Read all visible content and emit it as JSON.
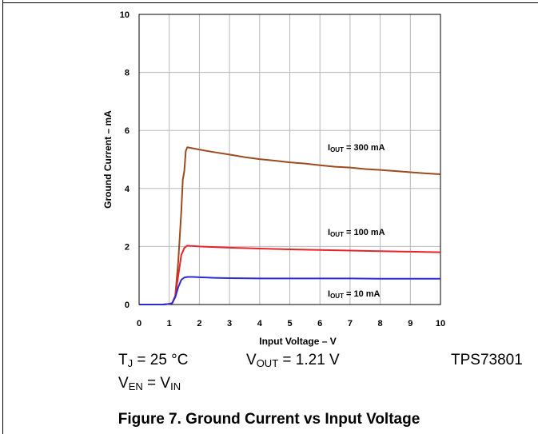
{
  "chart_data": {
    "type": "line",
    "xlabel": "Input Voltage – V",
    "ylabel": "Ground Current – mA",
    "xlim": [
      0,
      10
    ],
    "ylim": [
      0,
      10
    ],
    "xticks": [
      "0",
      "1",
      "2",
      "3",
      "4",
      "5",
      "6",
      "7",
      "8",
      "9",
      "10"
    ],
    "yticks": [
      "0",
      "2",
      "4",
      "6",
      "8",
      "10"
    ],
    "grid": true,
    "series": [
      {
        "name": "IOUT = 300 mA",
        "label_main": "I",
        "label_sub": "OUT",
        "label_rest": " = 300 mA",
        "color": "#9c4a1e",
        "x": [
          0,
          0.8,
          1.0,
          1.1,
          1.2,
          1.3,
          1.4,
          1.45,
          1.5,
          1.55,
          1.6,
          1.7,
          2,
          2.5,
          3,
          3.5,
          4,
          4.5,
          5,
          5.5,
          6,
          6.5,
          7,
          7.5,
          8,
          8.5,
          9,
          9.5,
          10
        ],
        "y": [
          0,
          0,
          0.02,
          0.05,
          0.3,
          1.5,
          3.2,
          4.3,
          4.6,
          5.3,
          5.42,
          5.4,
          5.34,
          5.25,
          5.17,
          5.08,
          5.01,
          4.96,
          4.9,
          4.86,
          4.8,
          4.75,
          4.72,
          4.67,
          4.64,
          4.6,
          4.56,
          4.52,
          4.49
        ]
      },
      {
        "name": "IOUT = 100 mA",
        "label_main": "I",
        "label_sub": "OUT",
        "label_rest": " = 100 mA",
        "color": "#e8242a",
        "x": [
          0,
          0.8,
          1.0,
          1.1,
          1.2,
          1.3,
          1.4,
          1.5,
          1.6,
          1.7,
          2,
          2.5,
          3,
          4,
          5,
          6,
          7,
          8,
          9,
          10
        ],
        "y": [
          0,
          0,
          0.02,
          0.05,
          0.3,
          1.0,
          1.7,
          1.95,
          2.03,
          2.02,
          2.0,
          1.98,
          1.96,
          1.93,
          1.9,
          1.88,
          1.86,
          1.84,
          1.82,
          1.8
        ]
      },
      {
        "name": "IOUT = 10 mA",
        "label_main": "I",
        "label_sub": "OUT",
        "label_rest": " = 10 mA",
        "color": "#2b2bd6",
        "x": [
          0,
          0.8,
          1.0,
          1.1,
          1.2,
          1.3,
          1.4,
          1.5,
          1.6,
          1.8,
          2,
          2.5,
          3,
          4,
          5,
          6,
          7,
          8,
          9,
          10
        ],
        "y": [
          0,
          0,
          0.02,
          0.05,
          0.25,
          0.6,
          0.85,
          0.93,
          0.95,
          0.95,
          0.94,
          0.92,
          0.91,
          0.9,
          0.9,
          0.9,
          0.9,
          0.89,
          0.89,
          0.89
        ]
      }
    ]
  },
  "conditions": {
    "tj_main": "T",
    "tj_sub": "J",
    "tj_rest": " = 25 °C",
    "vout_main": "V",
    "vout_sub": "OUT",
    "vout_rest": " = 1.21 V",
    "part": "TPS73801",
    "ven_main": "V",
    "ven_sub": "EN",
    "ven_mid": " = V",
    "ven_sub2": "IN"
  },
  "caption": "Figure 7. Ground Current vs Input Voltage"
}
